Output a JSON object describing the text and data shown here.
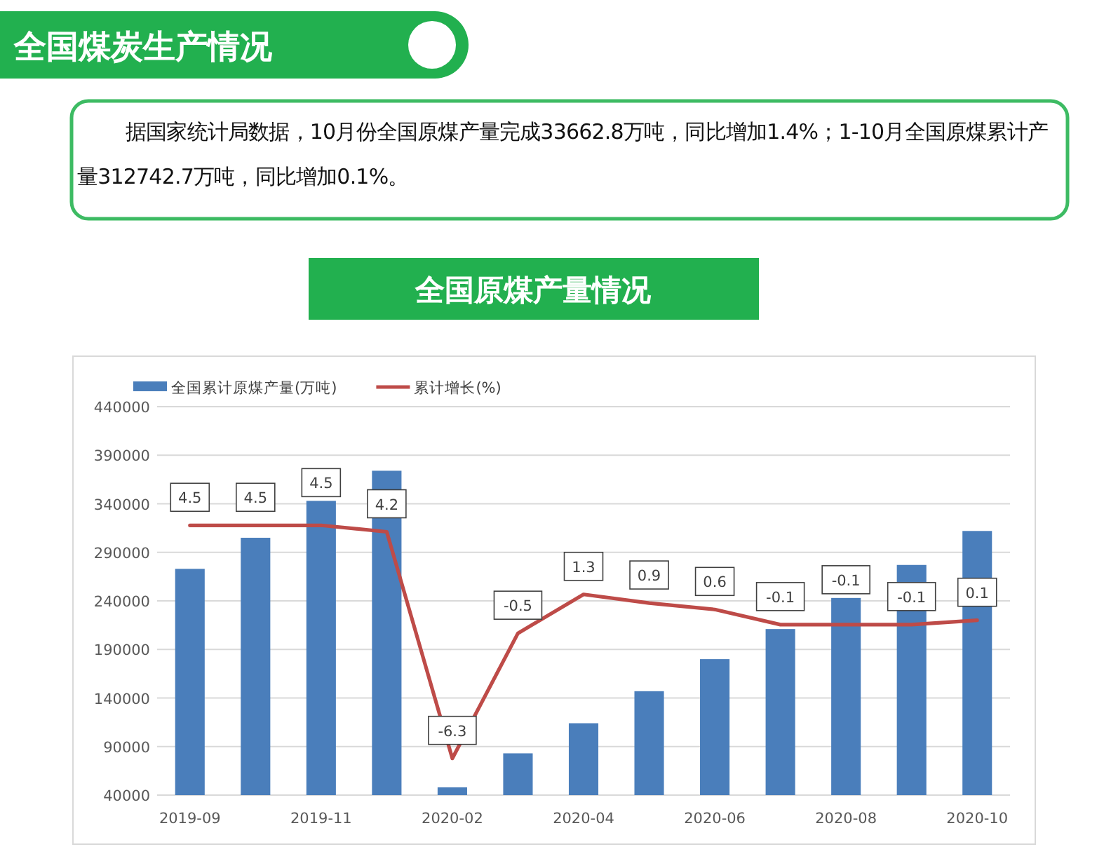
{
  "chart_data": {
    "type": "bar",
    "title": "全国原煤产量情况",
    "annotations": [
      "全国煤炭生产情况",
      "据国家统计局数据，10月份全国原煤产量完成33662.8万吨，同比增加1.4%；1-10月全国原煤累计产量312742.7万吨，同比增加0.1%。"
    ],
    "categories": [
      "2019-09",
      null,
      "2019-11",
      null,
      "2020-02",
      null,
      "2020-04",
      null,
      "2020-06",
      null,
      "2020-08",
      null,
      "2020-10"
    ],
    "series": [
      {
        "name": "全国累计原煤产量(万吨)",
        "color": "#4a7ebb",
        "values": [
          273000,
          305000,
          343000,
          374000,
          48000,
          83000,
          114000,
          147000,
          180000,
          211000,
          243000,
          277000,
          312000
        ]
      },
      {
        "name": "累计增长(%)",
        "type": "line",
        "axis": "y2",
        "color": "#be4b48",
        "values": [
          4.5,
          4.5,
          4.5,
          4.2,
          -6.3,
          -0.5,
          1.3,
          0.9,
          0.6,
          -0.1,
          -0.1,
          -0.1,
          0.1
        ],
        "value_labels": [
          "4.5",
          "4.5",
          "4.5",
          "4.2",
          "-6.3",
          "-0.5",
          "1.3",
          "0.9",
          "0.6",
          "-0.1",
          "-0.1",
          "-0.1",
          "0.1"
        ]
      }
    ],
    "ylim": [
      40000,
      440000
    ],
    "yticks": [
      40000,
      90000,
      140000,
      190000,
      240000,
      290000,
      340000,
      390000,
      440000
    ],
    "y2lim": [
      -8,
      10
    ],
    "grid": "y",
    "legend": "top left",
    "marker": "none",
    "line_style": "solid"
  }
}
